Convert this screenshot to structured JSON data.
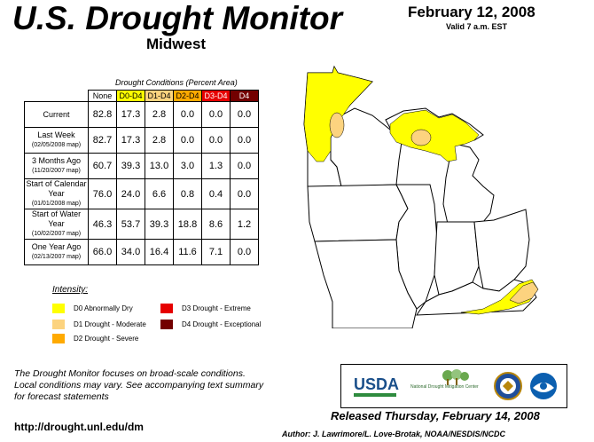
{
  "header": {
    "title": "U.S. Drought Monitor",
    "region": "Midwest",
    "date": "February 12, 2008",
    "valid": "Valid 7 a.m. EST"
  },
  "table": {
    "caption": "Drought Conditions (Percent Area)",
    "columns": [
      "None",
      "D0-D4",
      "D1-D4",
      "D2-D4",
      "D3-D4",
      "D4"
    ],
    "rows": [
      {
        "label": "Current",
        "sub": "",
        "values": [
          "82.8",
          "17.3",
          "2.8",
          "0.0",
          "0.0",
          "0.0"
        ]
      },
      {
        "label": "Last Week",
        "sub": "(02/05/2008 map)",
        "values": [
          "82.7",
          "17.3",
          "2.8",
          "0.0",
          "0.0",
          "0.0"
        ]
      },
      {
        "label": "3 Months Ago",
        "sub": "(11/20/2007 map)",
        "values": [
          "60.7",
          "39.3",
          "13.0",
          "3.0",
          "1.3",
          "0.0"
        ]
      },
      {
        "label": "Start of Calendar Year",
        "sub": "(01/01/2008 map)",
        "values": [
          "76.0",
          "24.0",
          "6.6",
          "0.8",
          "0.4",
          "0.0"
        ]
      },
      {
        "label": "Start of Water Year",
        "sub": "(10/02/2007 map)",
        "values": [
          "46.3",
          "53.7",
          "39.3",
          "18.8",
          "8.6",
          "1.2"
        ]
      },
      {
        "label": "One Year Ago",
        "sub": "(02/13/2007 map)",
        "values": [
          "66.0",
          "34.0",
          "16.4",
          "11.6",
          "7.1",
          "0.0"
        ]
      }
    ]
  },
  "legend": {
    "title": "Intensity:",
    "items": [
      {
        "label": "D0 Abnormally Dry",
        "color": "#ffff00"
      },
      {
        "label": "D1 Drought - Moderate",
        "color": "#fcd37f"
      },
      {
        "label": "D2 Drought - Severe",
        "color": "#ffaa00"
      },
      {
        "label": "D3 Drought - Extreme",
        "color": "#e60000"
      },
      {
        "label": "D4 Drought - Exceptional",
        "color": "#730000"
      }
    ]
  },
  "note": {
    "line1": "The Drought Monitor focuses on broad-scale conditions.",
    "line2": "Local conditions may vary. See accompanying text summary",
    "line3": "for forecast statements"
  },
  "footer": {
    "url": "http://drought.unl.edu/dm",
    "released": "Released Thursday, February 14, 2008",
    "author": "Author: J. Lawrimore/L. Love-Brotak, NOAA/NESDIS/NCDC"
  },
  "logos": {
    "usda": "USDA",
    "ndmc": "National Drought Mitigation Center"
  }
}
